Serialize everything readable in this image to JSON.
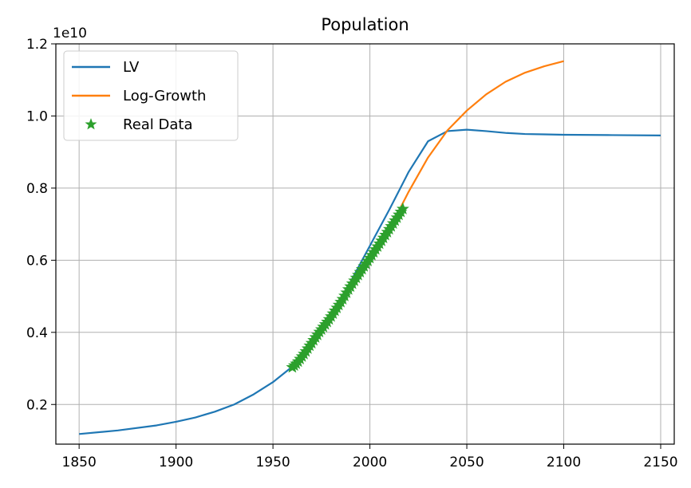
{
  "chart_data": {
    "type": "line",
    "title": "Population",
    "xlabel": "",
    "ylabel": "",
    "y_offset_label": "1e10",
    "xlim": [
      1838,
      2157
    ],
    "ylim": [
      0.09,
      1.2
    ],
    "x_ticks": [
      1850,
      1900,
      1950,
      2000,
      2050,
      2100,
      2150
    ],
    "y_ticks": [
      0.2,
      0.4,
      0.6,
      0.8,
      1.0,
      1.2
    ],
    "x_tick_labels": [
      "1850",
      "1900",
      "1950",
      "2000",
      "2050",
      "2100",
      "2150"
    ],
    "y_tick_labels": [
      "0.2",
      "0.4",
      "0.6",
      "0.8",
      "1.0",
      "1.2"
    ],
    "grid": true,
    "legend_position": "top-left",
    "colors": {
      "LV": "#1f77b4",
      "Log-Growth": "#ff7f0e",
      "Real Data": "#2ca02c"
    },
    "series": [
      {
        "name": "LV",
        "style": "line",
        "x": [
          1850,
          1870,
          1890,
          1900,
          1910,
          1920,
          1930,
          1940,
          1950,
          1960,
          1970,
          1980,
          1990,
          2000,
          2010,
          2020,
          2030,
          2040,
          2050,
          2060,
          2070,
          2080,
          2090,
          2100,
          2125,
          2150
        ],
        "y": [
          0.118,
          0.128,
          0.142,
          0.152,
          0.164,
          0.18,
          0.2,
          0.228,
          0.262,
          0.305,
          0.365,
          0.445,
          0.54,
          0.64,
          0.74,
          0.845,
          0.93,
          0.958,
          0.962,
          0.958,
          0.953,
          0.95,
          0.949,
          0.948,
          0.947,
          0.946
        ]
      },
      {
        "name": "Log-Growth",
        "style": "line",
        "x": [
          2016,
          2020,
          2030,
          2040,
          2050,
          2060,
          2070,
          2080,
          2090,
          2100
        ],
        "y": [
          0.748,
          0.79,
          0.885,
          0.96,
          1.015,
          1.06,
          1.095,
          1.12,
          1.138,
          1.152
        ]
      },
      {
        "name": "Real Data",
        "style": "marker",
        "marker": "star",
        "x": [
          1960,
          1961,
          1962,
          1963,
          1964,
          1965,
          1966,
          1967,
          1968,
          1969,
          1970,
          1971,
          1972,
          1973,
          1974,
          1975,
          1976,
          1977,
          1978,
          1979,
          1980,
          1981,
          1982,
          1983,
          1984,
          1985,
          1986,
          1987,
          1988,
          1989,
          1990,
          1991,
          1992,
          1993,
          1994,
          1995,
          1996,
          1997,
          1998,
          1999,
          2000,
          2001,
          2002,
          2003,
          2004,
          2005,
          2006,
          2007,
          2008,
          2009,
          2010,
          2011,
          2012,
          2013,
          2014,
          2015,
          2016,
          2017
        ],
        "y": [
          0.303,
          0.308,
          0.313,
          0.319,
          0.326,
          0.333,
          0.34,
          0.347,
          0.355,
          0.363,
          0.37,
          0.378,
          0.386,
          0.393,
          0.401,
          0.408,
          0.415,
          0.422,
          0.429,
          0.436,
          0.444,
          0.452,
          0.46,
          0.468,
          0.476,
          0.484,
          0.492,
          0.501,
          0.51,
          0.519,
          0.527,
          0.535,
          0.543,
          0.551,
          0.559,
          0.567,
          0.575,
          0.583,
          0.59,
          0.598,
          0.606,
          0.614,
          0.622,
          0.63,
          0.638,
          0.646,
          0.654,
          0.662,
          0.67,
          0.678,
          0.686,
          0.694,
          0.702,
          0.71,
          0.718,
          0.726,
          0.734,
          0.742
        ]
      }
    ]
  }
}
